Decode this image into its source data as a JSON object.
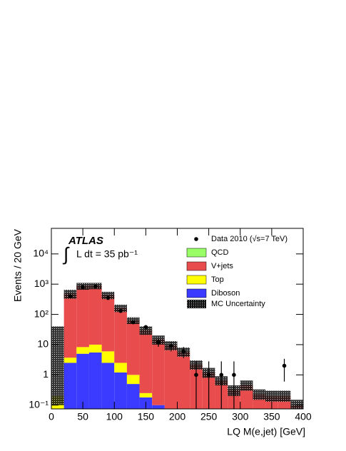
{
  "chart_data": {
    "type": "stacked_histogram",
    "experiment": "ATLAS",
    "integral_sign": "∫",
    "luminosity": "L dt = 35 pb⁻¹",
    "xlabel": "LQ M(e,jet) [GeV]",
    "ylabel": "Events / 20 GeV",
    "log_y": true,
    "bins": [
      0,
      20,
      40,
      60,
      80,
      100,
      120,
      140,
      160,
      180,
      200,
      220,
      240,
      260,
      280,
      300,
      320,
      340,
      360,
      380,
      400
    ],
    "xlim": [
      0,
      400
    ],
    "xticks": [
      0,
      50,
      100,
      150,
      200,
      250,
      300,
      350,
      400
    ],
    "ylim": [
      0.075,
      70000
    ],
    "yticks": [
      {
        "value": 0.1,
        "label": "10⁻¹"
      },
      1,
      10,
      {
        "value": 100,
        "label": "10²"
      },
      {
        "value": 1000,
        "label": "10³"
      },
      {
        "value": 10000,
        "label": "10⁴"
      }
    ],
    "series": [
      {
        "name": "QCD",
        "color": "#99ff66",
        "values": [
          0,
          0,
          0,
          0,
          0,
          0,
          0,
          0,
          0,
          0,
          0,
          0,
          0,
          0,
          0,
          0,
          0,
          0,
          0,
          0
        ]
      },
      {
        "name": "V+jets",
        "color": "#e84c4c",
        "values": [
          0,
          486,
          880,
          890,
          434,
          160,
          63,
          30,
          15,
          9.5,
          5.8,
          2.2,
          1.2,
          0.65,
          0.32,
          0.46,
          0.23,
          0.2,
          0.2,
          0.1
        ]
      },
      {
        "name": "Top",
        "color": "#ffff00",
        "values": [
          0.2,
          1.2,
          3.3,
          4.5,
          3.5,
          1.3,
          0.5,
          0.07,
          0,
          0,
          0,
          0,
          0,
          0,
          0,
          0,
          0,
          0,
          0,
          0
        ]
      },
      {
        "name": "Diboson",
        "color": "#3b3bff",
        "values": [
          0,
          2.5,
          5,
          5.5,
          2.5,
          1.2,
          0.5,
          0.18,
          0.1,
          0,
          0,
          0,
          0,
          0,
          0,
          0,
          0,
          0,
          0,
          0
        ]
      }
    ],
    "uncertainty": {
      "name": "MC Uncertainty",
      "low": [
        0.1,
        330,
        650,
        680,
        320,
        120,
        48,
        21,
        10,
        6.5,
        4,
        1.5,
        0.8,
        0.45,
        0.2,
        0.3,
        0.15,
        0.13,
        0.13,
        0.07
      ],
      "high": [
        40,
        650,
        1100,
        1100,
        560,
        210,
        80,
        40,
        20,
        13,
        8,
        3,
        1.7,
        0.9,
        0.45,
        0.65,
        0.33,
        0.3,
        0.3,
        0.15
      ]
    },
    "data": {
      "name": "Data 2010 (√s=7 TeV)",
      "color": "#000000",
      "x": [
        30,
        50,
        70,
        90,
        110,
        130,
        150,
        170,
        190,
        210,
        230,
        250,
        270,
        290,
        370
      ],
      "values": [
        400,
        800,
        850,
        350,
        130,
        55,
        38,
        12,
        9,
        6,
        1,
        1,
        1,
        1,
        2
      ],
      "errors": [
        20,
        28,
        29,
        19,
        11,
        7.4,
        6.2,
        3.5,
        3,
        2.4,
        1.8,
        1.8,
        1.8,
        1.8,
        1.4
      ]
    }
  }
}
